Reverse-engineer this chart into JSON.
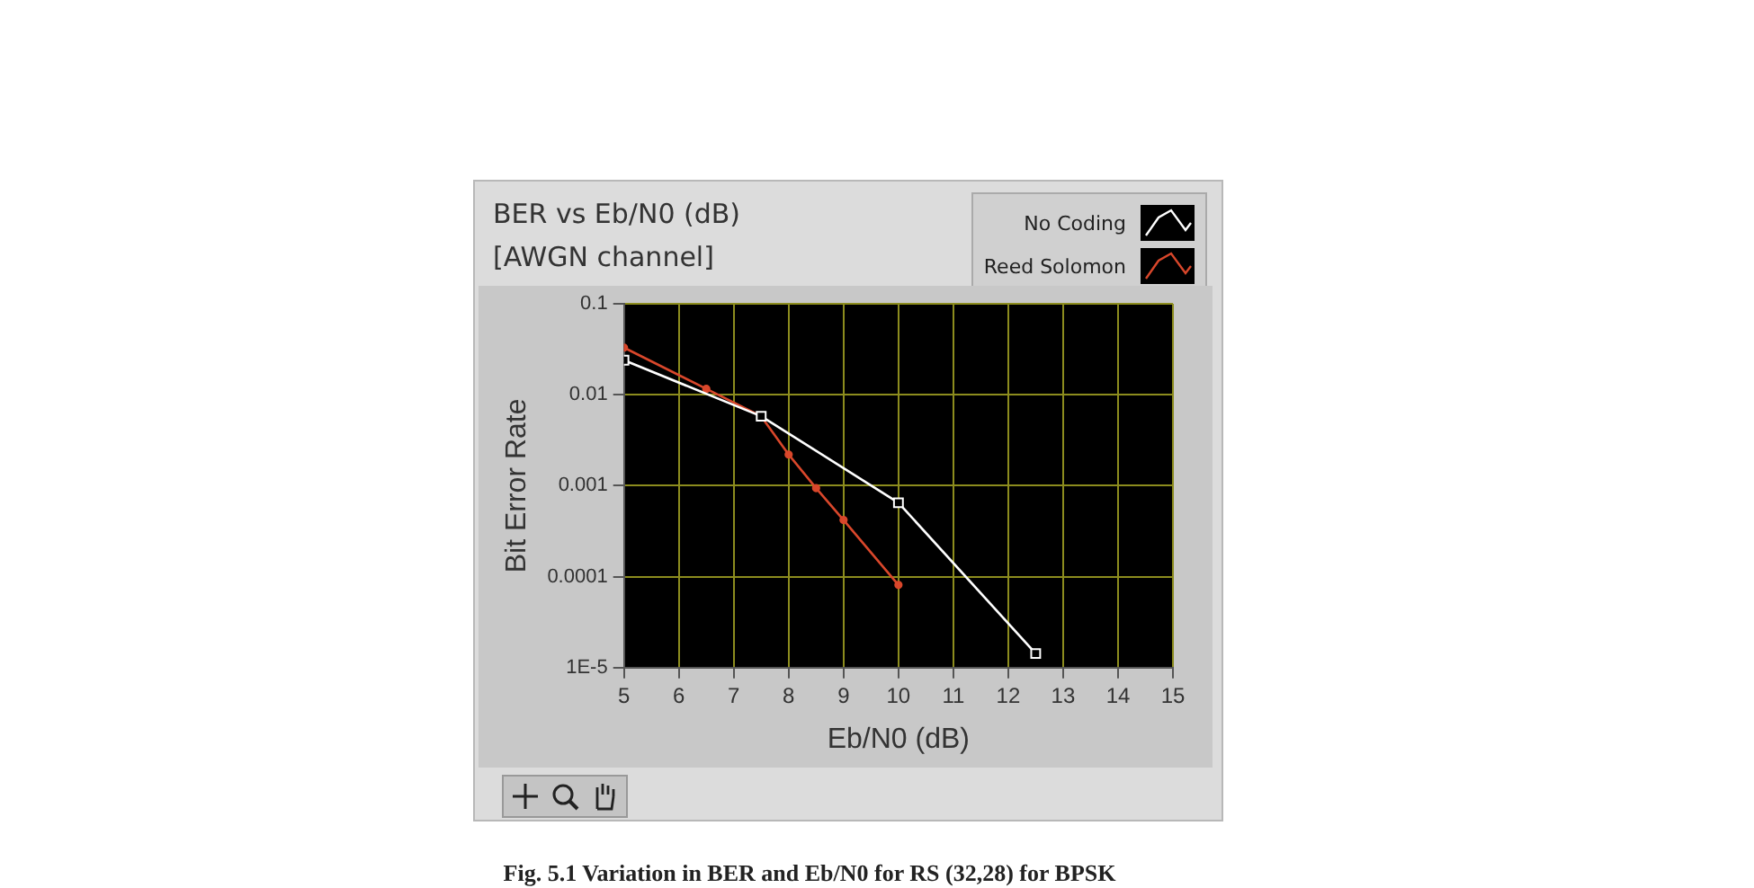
{
  "chart_data": {
    "type": "line",
    "title": "BER vs Eb/N0 (dB)",
    "subtitle": "[AWGN channel]",
    "xlabel": "Eb/N0 (dB)",
    "ylabel": "Bit Error Rate",
    "annotations": [
      "Fig. 5.1 Variation in BER and Eb/N0 for RS (32,28) for BPSK"
    ],
    "series": [
      {
        "name": "No Coding",
        "color": "#ffffff",
        "marker": "square",
        "x": [
          5,
          7.5,
          10,
          12.5
        ],
        "values": [
          0.024,
          0.0058,
          0.00065,
          1.43e-05
        ]
      },
      {
        "name": "Reed Solomon",
        "color": "#d9472b",
        "marker": "circle",
        "x": [
          5,
          6.5,
          7.5,
          8,
          8.5,
          9,
          10
        ],
        "values": [
          0.033,
          0.0116,
          0.0058,
          0.0022,
          0.00094,
          0.00042,
          8.1e-05
        ]
      }
    ],
    "log": "y",
    "xlim": [
      5,
      15
    ],
    "xticks": [
      5,
      6,
      7,
      8,
      9,
      10,
      11,
      12,
      13,
      14,
      15
    ],
    "ylim": [
      1e-05,
      0.1
    ],
    "yticks": [
      {
        "value": 0.1,
        "label": "0.1"
      },
      {
        "value": 0.01,
        "label": "0.01"
      },
      {
        "value": 0.001,
        "label": "0.001"
      },
      {
        "value": 0.0001,
        "label": "0.0001"
      },
      {
        "value": 1e-05,
        "label": "1E-5"
      }
    ],
    "grid": true,
    "legend": "top right"
  }
}
